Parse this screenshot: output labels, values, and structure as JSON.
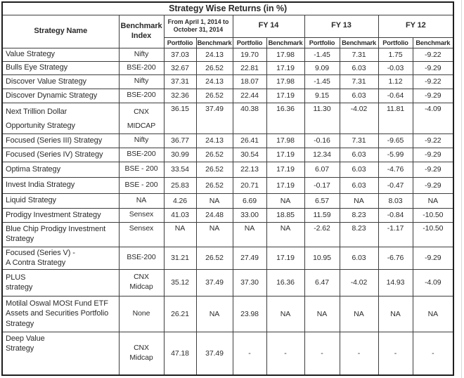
{
  "title": "Strategy Wise Returns (in %)",
  "palette": {
    "ink": "#2b2b2b",
    "border": "#3d3d3d",
    "background": "#ffffff"
  },
  "table": {
    "headers": {
      "strategy_name": "Strategy Name",
      "benchmark_index": "Benchmark Index",
      "period_current": "From April 1, 2014 to October 31, 2014",
      "fy14": "FY 14",
      "fy13": "FY 13",
      "fy12": "FY 12",
      "portfolio": "Portfolio",
      "benchmark": "Benchmark"
    },
    "rows": [
      {
        "name": [
          "Value Strategy"
        ],
        "benchmark_index": [
          "Nifty"
        ],
        "values": [
          "37.03",
          "24.13",
          "19.70",
          "17.98",
          "-1.45",
          "7.31",
          "1.75",
          "-9.22"
        ]
      },
      {
        "name": [
          "Bulls Eye Strategy"
        ],
        "benchmark_index": [
          "BSE-200"
        ],
        "values": [
          "32.67",
          "26.52",
          "22.81",
          "17.19",
          "9.09",
          "6.03",
          "-0.03",
          "-9.29"
        ]
      },
      {
        "name": [
          "Discover Value Strategy"
        ],
        "benchmark_index": [
          "Nifty"
        ],
        "values": [
          "37.31",
          "24.13",
          "18.07",
          "17.98",
          "-1.45",
          "7.31",
          "1.12",
          "-9.22"
        ]
      },
      {
        "name": [
          "Discover Dynamic Strategy"
        ],
        "benchmark_index": [
          "BSE-200"
        ],
        "values": [
          "32.36",
          "26.52",
          "22.44",
          "17.19",
          "9.15",
          "6.03",
          "-0.64",
          "-9.29"
        ]
      },
      {
        "name": [
          "Next Trillion Dollar",
          "Opportunity Strategy"
        ],
        "benchmark_index": [
          "CNX",
          "MIDCAP"
        ],
        "values": [
          "36.15",
          "37.49",
          "40.38",
          "16.36",
          "11.30",
          "-4.02",
          "11.81",
          "-4.09"
        ]
      },
      {
        "name": [
          "Focused (Series III) Strategy"
        ],
        "benchmark_index": [
          "Nifty"
        ],
        "values": [
          "36.77",
          "24.13",
          "26.41",
          "17.98",
          "-0.16",
          "7.31",
          "-9.65",
          "-9.22"
        ]
      },
      {
        "name": [
          "Focused (Series IV) Strategy"
        ],
        "benchmark_index": [
          "BSE-200"
        ],
        "values": [
          "30.99",
          "26.52",
          "30.54",
          "17.19",
          "12.34",
          "6.03",
          "-5.99",
          "-9.29"
        ]
      },
      {
        "name": [
          "Optima Strategy"
        ],
        "benchmark_index": [
          "BSE - 200"
        ],
        "values": [
          "33.54",
          "26.52",
          "22.13",
          "17.19",
          "6.07",
          "6.03",
          "-4.76",
          "-9.29"
        ]
      },
      {
        "name": [
          "Invest India Strategy"
        ],
        "benchmark_index": [
          "BSE - 200"
        ],
        "values": [
          "25.83",
          "26.52",
          "20.71",
          "17.19",
          "-0.17",
          "6.03",
          "-0.47",
          "-9.29"
        ]
      },
      {
        "name": [
          "Liquid Strategy"
        ],
        "benchmark_index": [
          "NA"
        ],
        "values": [
          "4.26",
          "NA",
          "6.69",
          "NA",
          "6.57",
          "NA",
          "8.03",
          "NA"
        ]
      },
      {
        "name": [
          "Prodigy Investment Strategy"
        ],
        "benchmark_index": [
          "Sensex"
        ],
        "values": [
          "41.03",
          "24.48",
          "33.00",
          "18.85",
          "11.59",
          "8.23",
          "-0.84",
          "-10.50"
        ]
      },
      {
        "name": [
          "Blue Chip Prodigy Investment",
          "Strategy"
        ],
        "benchmark_index": [
          "Sensex"
        ],
        "values": [
          "NA",
          "NA",
          "NA",
          "NA",
          "-2.62",
          "8.23",
          "-1.17",
          "-10.50"
        ]
      },
      {
        "name": [
          "Focused (Series V) -",
          "A Contra Strategy"
        ],
        "benchmark_index": [
          "BSE-200"
        ],
        "values": [
          "31.21",
          "26.52",
          "27.49",
          "17.19",
          "10.95",
          "6.03",
          "-6.76",
          "-9.29"
        ]
      },
      {
        "name": [
          "PLUS",
          "strategy"
        ],
        "benchmark_index": [
          "CNX",
          "Midcap"
        ],
        "values": [
          "35.12",
          "37.49",
          "37.30",
          "16.36",
          "6.47",
          "-4.02",
          "14.93",
          "-4.09"
        ]
      },
      {
        "name": [
          "Motilal Oswal MOSt Fund ETF",
          "Assets and Securities Portfolio",
          "Strategy"
        ],
        "benchmark_index": [
          "None"
        ],
        "values": [
          "26.21",
          "NA",
          "23.98",
          "NA",
          "NA",
          "NA",
          "NA",
          "NA"
        ]
      },
      {
        "name": [
          "Deep Value",
          "Strategy"
        ],
        "benchmark_index": [
          "CNX",
          "Midcap"
        ],
        "values": [
          "47.18",
          "37.49",
          "-",
          "-",
          "-",
          "-",
          "-",
          "-"
        ]
      }
    ]
  }
}
